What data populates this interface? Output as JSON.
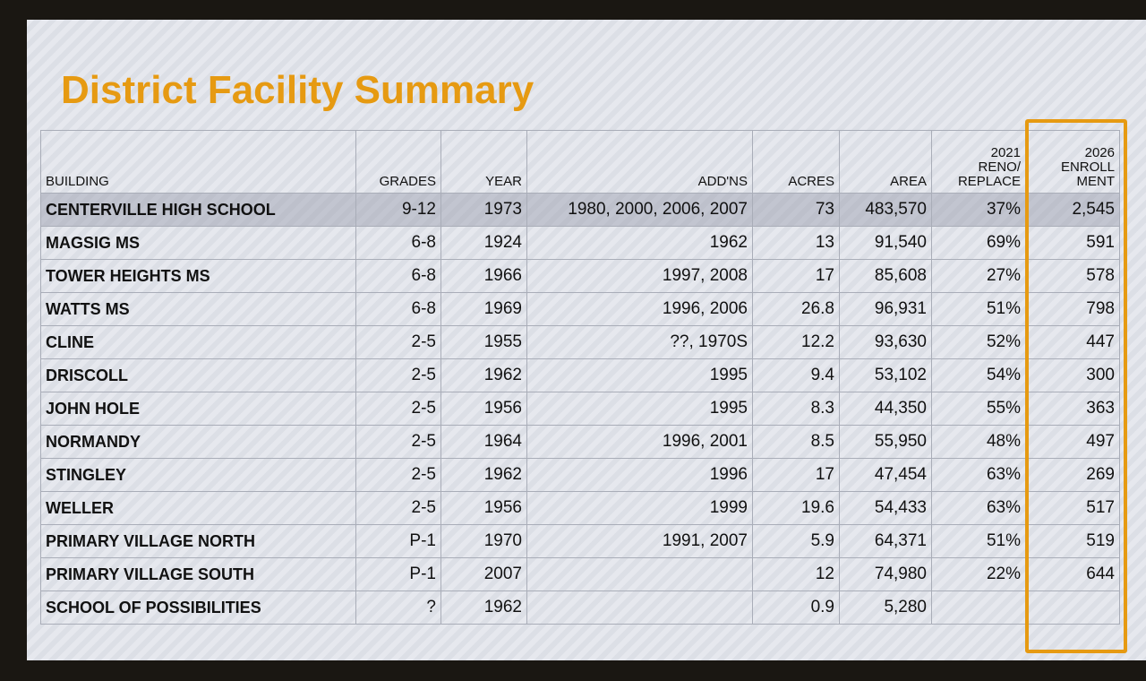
{
  "header": {
    "title": "District Facility Summary"
  },
  "table": {
    "columns": [
      [
        "BUILDING"
      ],
      [
        "GRADES"
      ],
      [
        "YEAR"
      ],
      [
        "ADD'NS"
      ],
      [
        "ACRES"
      ],
      [
        "AREA"
      ],
      [
        "2021",
        "RENO/",
        "REPLACE"
      ],
      [
        "2026",
        "ENROLL",
        "MENT"
      ]
    ],
    "rows": [
      [
        "CENTERVILLE HIGH SCHOOL",
        "9-12",
        "1973",
        "1980, 2000, 2006, 2007",
        "73",
        "483,570",
        "37%",
        "2,545"
      ],
      [
        "MAGSIG MS",
        "6-8",
        "1924",
        "1962",
        "13",
        "91,540",
        "69%",
        "591"
      ],
      [
        "TOWER HEIGHTS MS",
        "6-8",
        "1966",
        "1997, 2008",
        "17",
        "85,608",
        "27%",
        "578"
      ],
      [
        "WATTS MS",
        "6-8",
        "1969",
        "1996, 2006",
        "26.8",
        "96,931",
        "51%",
        "798"
      ],
      [
        "CLINE",
        "2-5",
        "1955",
        "??, 1970S",
        "12.2",
        "93,630",
        "52%",
        "447"
      ],
      [
        "DRISCOLL",
        "2-5",
        "1962",
        "1995",
        "9.4",
        "53,102",
        "54%",
        "300"
      ],
      [
        "JOHN HOLE",
        "2-5",
        "1956",
        "1995",
        "8.3",
        "44,350",
        "55%",
        "363"
      ],
      [
        "NORMANDY",
        "2-5",
        "1964",
        "1996, 2001",
        "8.5",
        "55,950",
        "48%",
        "497"
      ],
      [
        "STINGLEY",
        "2-5",
        "1962",
        "1996",
        "17",
        "47,454",
        "63%",
        "269"
      ],
      [
        "WELLER",
        "2-5",
        "1956",
        "1999",
        "19.6",
        "54,433",
        "63%",
        "517"
      ],
      [
        "PRIMARY VILLAGE NORTH",
        "P-1",
        "1970",
        "1991, 2007",
        "5.9",
        "64,371",
        "51%",
        "519"
      ],
      [
        "PRIMARY VILLAGE SOUTH",
        "P-1",
        "2007",
        null,
        "12",
        "74,980",
        "22%",
        "644"
      ],
      [
        "SCHOOL OF POSSIBILITIES",
        "?",
        "1962",
        null,
        "0.9",
        "5,280",
        null,
        null
      ]
    ]
  }
}
